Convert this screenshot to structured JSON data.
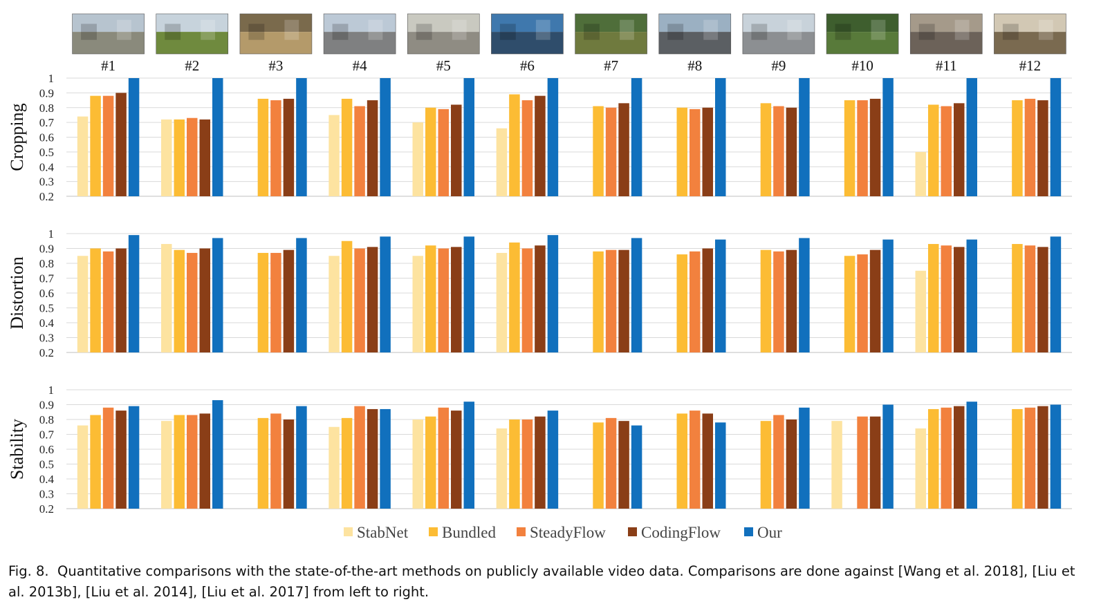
{
  "caption": {
    "label": "Fig. 8.",
    "text": "Quantitative comparisons with the state-of-the-art methods on publicly available video data. Comparisons are done against [Wang et al. 2018], [Liu et al. 2013b], [Liu et al. 2014], [Liu et al. 2017] from left to right."
  },
  "thumbnails": [
    {
      "label": "#1",
      "scene": "plaza with red umbrellas",
      "sky": "#b7c4cf",
      "ground": "#8a8a7c"
    },
    {
      "label": "#2",
      "scene": "grassy hill with person",
      "sky": "#c7d3dc",
      "ground": "#6f8a3e"
    },
    {
      "label": "#3",
      "scene": "playground",
      "sky": "#7a6a4c",
      "ground": "#b49a6a"
    },
    {
      "label": "#4",
      "scene": "street with buildings",
      "sky": "#bcc9d6",
      "ground": "#7f8081"
    },
    {
      "label": "#5",
      "scene": "plaza with red cone",
      "sky": "#c9c9c0",
      "ground": "#8f8c83"
    },
    {
      "label": "#6",
      "scene": "fountain",
      "sky": "#3f78ad",
      "ground": "#2f4d6b"
    },
    {
      "label": "#7",
      "scene": "garden path",
      "sky": "#4f6e3a",
      "ground": "#6f7a3e"
    },
    {
      "label": "#8",
      "scene": "highway",
      "sky": "#9bb0c2",
      "ground": "#5b5f63"
    },
    {
      "label": "#9",
      "scene": "parking lot",
      "sky": "#c8d2da",
      "ground": "#8c8f92"
    },
    {
      "label": "#10",
      "scene": "wooded park",
      "sky": "#3e5e2e",
      "ground": "#587a3a"
    },
    {
      "label": "#11",
      "scene": "courtyard with person",
      "sky": "#a59a8a",
      "ground": "#6c6259"
    },
    {
      "label": "#12",
      "scene": "corridor",
      "sky": "#d2c8b4",
      "ground": "#7a6a50"
    }
  ],
  "chart_data": [
    {
      "type": "bar",
      "ylabel": "Cropping",
      "ylim": [
        0.2,
        1
      ],
      "yticks": [
        "1",
        "0.9",
        "0.8",
        "0.7",
        "0.6",
        "0.5",
        "0.4",
        "0.3",
        "0.2"
      ],
      "grid": true,
      "categories": [
        "#1",
        "#2",
        "#3",
        "#4",
        "#5",
        "#6",
        "#7",
        "#8",
        "#9",
        "#10",
        "#11",
        "#12"
      ],
      "series": [
        {
          "name": "StabNet",
          "color": "#fde3a0",
          "values": [
            0.74,
            0.72,
            null,
            0.75,
            0.7,
            0.66,
            null,
            null,
            null,
            null,
            0.5,
            null
          ]
        },
        {
          "name": "Bundled",
          "color": "#fcbc34",
          "values": [
            0.88,
            0.72,
            0.86,
            0.86,
            0.8,
            0.89,
            0.81,
            0.8,
            0.83,
            0.85,
            0.82,
            0.85
          ]
        },
        {
          "name": "SteadyFlow",
          "color": "#f2813e",
          "values": [
            0.88,
            0.73,
            0.85,
            0.81,
            0.79,
            0.85,
            0.8,
            0.79,
            0.81,
            0.85,
            0.81,
            0.86
          ]
        },
        {
          "name": "CodingFlow",
          "color": "#8a3e17",
          "values": [
            0.9,
            0.72,
            0.86,
            0.85,
            0.82,
            0.88,
            0.83,
            0.8,
            0.8,
            0.86,
            0.83,
            0.85
          ]
        },
        {
          "name": "Our",
          "color": "#1170bd",
          "values": [
            1.0,
            1.0,
            1.0,
            1.0,
            1.0,
            1.0,
            1.0,
            1.0,
            1.0,
            1.0,
            1.0,
            1.0
          ]
        }
      ]
    },
    {
      "type": "bar",
      "ylabel": "Distortion",
      "ylim": [
        0.2,
        1
      ],
      "yticks": [
        "1",
        "0.9",
        "0.8",
        "0.7",
        "0.6",
        "0.5",
        "0.4",
        "0.3",
        "0.2"
      ],
      "grid": true,
      "categories": [
        "#1",
        "#2",
        "#3",
        "#4",
        "#5",
        "#6",
        "#7",
        "#8",
        "#9",
        "#10",
        "#11",
        "#12"
      ],
      "series": [
        {
          "name": "StabNet",
          "color": "#fde3a0",
          "values": [
            0.85,
            0.93,
            null,
            0.85,
            0.85,
            0.87,
            null,
            null,
            null,
            null,
            0.75,
            null
          ]
        },
        {
          "name": "Bundled",
          "color": "#fcbc34",
          "values": [
            0.9,
            0.89,
            0.87,
            0.95,
            0.92,
            0.94,
            0.88,
            0.86,
            0.89,
            0.85,
            0.93,
            0.93
          ]
        },
        {
          "name": "SteadyFlow",
          "color": "#f2813e",
          "values": [
            0.88,
            0.87,
            0.87,
            0.9,
            0.9,
            0.9,
            0.89,
            0.88,
            0.88,
            0.86,
            0.92,
            0.92
          ]
        },
        {
          "name": "CodingFlow",
          "color": "#8a3e17",
          "values": [
            0.9,
            0.9,
            0.89,
            0.91,
            0.91,
            0.92,
            0.89,
            0.9,
            0.89,
            0.89,
            0.91,
            0.91
          ]
        },
        {
          "name": "Our",
          "color": "#1170bd",
          "values": [
            0.99,
            0.97,
            0.97,
            0.98,
            0.98,
            0.99,
            0.97,
            0.96,
            0.97,
            0.96,
            0.96,
            0.98
          ]
        }
      ]
    },
    {
      "type": "bar",
      "ylabel": "Stability",
      "ylim": [
        0.2,
        1
      ],
      "yticks": [
        "1",
        "0.9",
        "0.8",
        "0.7",
        "0.6",
        "0.5",
        "0.4",
        "0.3",
        "0.2"
      ],
      "grid": true,
      "categories": [
        "#1",
        "#2",
        "#3",
        "#4",
        "#5",
        "#6",
        "#7",
        "#8",
        "#9",
        "#10",
        "#11",
        "#12"
      ],
      "series": [
        {
          "name": "StabNet",
          "color": "#fde3a0",
          "values": [
            0.76,
            0.79,
            null,
            0.75,
            0.8,
            0.74,
            null,
            null,
            null,
            0.79,
            0.74,
            null
          ]
        },
        {
          "name": "Bundled",
          "color": "#fcbc34",
          "values": [
            0.83,
            0.83,
            0.81,
            0.81,
            0.82,
            0.8,
            0.78,
            0.84,
            0.79,
            null,
            0.87,
            0.87
          ]
        },
        {
          "name": "SteadyFlow",
          "color": "#f2813e",
          "values": [
            0.88,
            0.83,
            0.84,
            0.89,
            0.88,
            0.8,
            0.81,
            0.86,
            0.83,
            0.82,
            0.88,
            0.88
          ]
        },
        {
          "name": "CodingFlow",
          "color": "#8a3e17",
          "values": [
            0.86,
            0.84,
            0.8,
            0.87,
            0.86,
            0.82,
            0.79,
            0.84,
            0.8,
            0.82,
            0.89,
            0.89
          ]
        },
        {
          "name": "Our",
          "color": "#1170bd",
          "values": [
            0.89,
            0.93,
            0.89,
            0.87,
            0.92,
            0.86,
            0.76,
            0.78,
            0.88,
            0.9,
            0.92,
            0.9
          ]
        }
      ]
    }
  ],
  "legend": {
    "position": "bottom-center",
    "items": [
      "StabNet",
      "Bundled",
      "SteadyFlow",
      "CodingFlow",
      "Our"
    ]
  }
}
